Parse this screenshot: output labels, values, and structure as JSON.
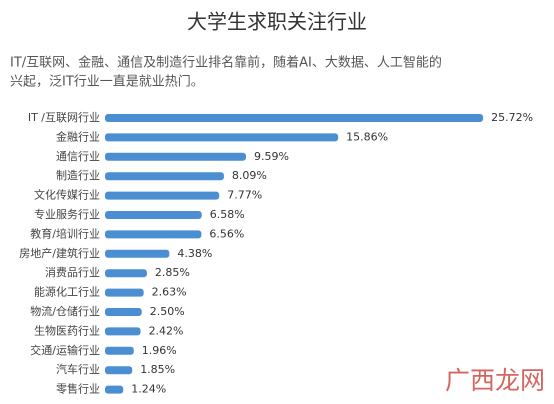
{
  "chart_data": {
    "type": "bar",
    "title": "大学生求职关注行业",
    "subtitle_lines": [
      "IT/互联网、金融、通信及制造行业排名靠前，随着AI、大数据、人工智能的",
      "兴起，泛IT行业一直是就业热门。"
    ],
    "categories": [
      "IT /互联网行业",
      "金融行业",
      "通信行业",
      "制造行业",
      "文化传媒行业",
      "专业服务行业",
      "教育/培训行业",
      "房地产/建筑行业",
      "消费品行业",
      "能源化工行业",
      "物流/仓储行业",
      "生物医药行业",
      "交通/运输行业",
      "汽车行业",
      "零售行业"
    ],
    "values": [
      25.72,
      15.86,
      9.59,
      8.09,
      7.77,
      6.58,
      6.56,
      4.38,
      2.85,
      2.63,
      2.5,
      2.42,
      1.96,
      1.85,
      1.24
    ],
    "value_labels": [
      "25.72%",
      "15.86%",
      "9.59%",
      "8.09%",
      "7.77%",
      "6.58%",
      "6.56%",
      "4.38%",
      "2.85%",
      "2.63%",
      "2.50%",
      "2.42%",
      "1.96%",
      "1.85%",
      "1.24%"
    ],
    "color": "#4b8fd2",
    "watermark": "广西龙网"
  }
}
